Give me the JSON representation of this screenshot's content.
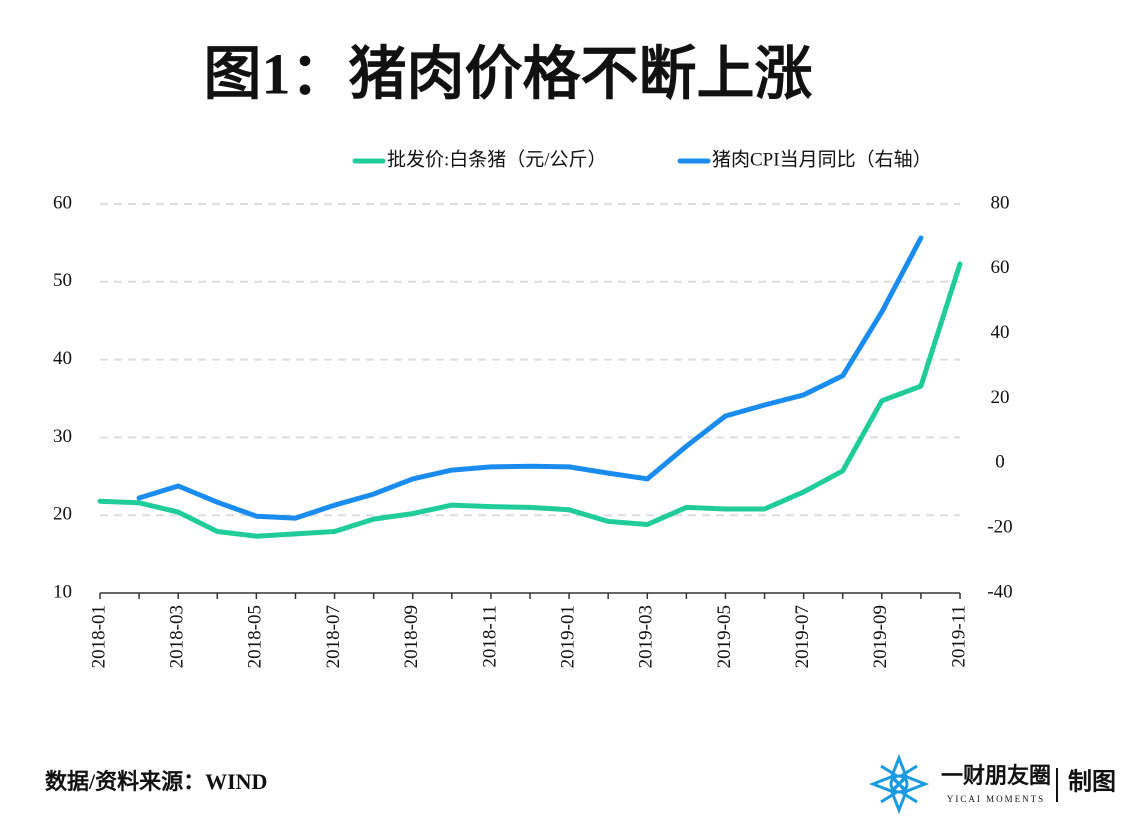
{
  "chart_data": {
    "type": "line",
    "title": "图1：猪肉价格不断上涨",
    "source": "数据/资料来源：WIND",
    "brand": {
      "name": "一财朋友圈",
      "sub": "YICAI MOMENTS",
      "tag": "制图"
    },
    "categories": [
      "2018-01",
      null,
      "2018-03",
      null,
      "2018-05",
      null,
      "2018-07",
      null,
      "2018-09",
      null,
      "2018-11",
      null,
      "2019-01",
      null,
      "2019-03",
      null,
      "2019-05",
      null,
      "2019-07",
      null,
      "2019-09",
      null,
      "2019-11"
    ],
    "series": [
      {
        "name": "批发价:白条猪（元/公斤）",
        "color": "#1fcc9a",
        "values": [
          21.8,
          21.6,
          20.4,
          17.9,
          17.3,
          17.6,
          17.9,
          19.5,
          20.2,
          21.3,
          21.1,
          21.0,
          20.7,
          19.2,
          18.8,
          21.0,
          20.8,
          20.8,
          23.0,
          25.7,
          34.7,
          36.6,
          52.3
        ]
      },
      {
        "name": "猪肉CPI当月同比（右轴）",
        "color": "#1a8cf0",
        "axis": "y2",
        "values": [
          null,
          -10.7,
          -7,
          -12,
          -16.3,
          -16.9,
          -12.9,
          -9.5,
          -4.8,
          -2.1,
          -1.1,
          -0.9,
          -1.1,
          -3,
          -4.8,
          5.3,
          14.6,
          18,
          21.1,
          27,
          46.7,
          69.5,
          null
        ]
      }
    ],
    "ylim": [
      10,
      60
    ],
    "yticks": [
      10,
      20,
      30,
      40,
      50,
      60
    ],
    "y2lim": [
      -40,
      80
    ],
    "y2ticks": [
      -40,
      -20,
      0,
      20,
      40,
      60,
      80
    ],
    "grid": true
  }
}
